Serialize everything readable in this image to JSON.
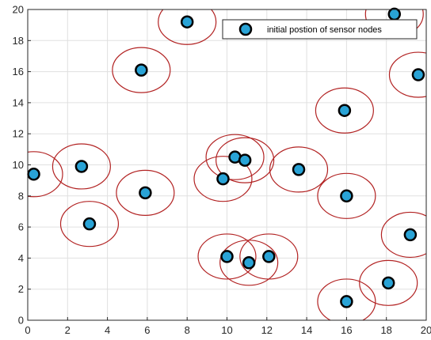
{
  "chart_data": {
    "type": "scatter",
    "xlim": [
      0,
      20
    ],
    "ylim": [
      0,
      20
    ],
    "xticks": [
      "0",
      "2",
      "4",
      "6",
      "8",
      "10",
      "12",
      "14",
      "16",
      "18",
      "20"
    ],
    "yticks": [
      "0",
      "2",
      "4",
      "6",
      "8",
      "10",
      "12",
      "14",
      "16",
      "18",
      "20"
    ],
    "grid": true,
    "legend_position": "top-right",
    "series": [
      {
        "name": "initial postion of sensor nodes",
        "marker_face_color": "#29a3d6",
        "marker_edge_color": "#000000",
        "points": [
          {
            "x": 0.3,
            "y": 9.4
          },
          {
            "x": 2.7,
            "y": 9.9
          },
          {
            "x": 3.1,
            "y": 6.2
          },
          {
            "x": 5.7,
            "y": 16.1
          },
          {
            "x": 5.9,
            "y": 8.2
          },
          {
            "x": 8.0,
            "y": 19.2
          },
          {
            "x": 9.8,
            "y": 9.1
          },
          {
            "x": 10.0,
            "y": 4.1
          },
          {
            "x": 10.4,
            "y": 10.5
          },
          {
            "x": 10.9,
            "y": 10.3
          },
          {
            "x": 11.1,
            "y": 3.7
          },
          {
            "x": 12.1,
            "y": 4.1
          },
          {
            "x": 13.6,
            "y": 9.7
          },
          {
            "x": 15.9,
            "y": 13.5
          },
          {
            "x": 16.0,
            "y": 8.0
          },
          {
            "x": 16.0,
            "y": 1.2
          },
          {
            "x": 18.1,
            "y": 2.4
          },
          {
            "x": 18.4,
            "y": 19.7
          },
          {
            "x": 19.2,
            "y": 5.5
          },
          {
            "x": 19.6,
            "y": 15.8
          }
        ]
      }
    ],
    "sensing_circle": {
      "radius": 1.45,
      "color": "#b22222"
    }
  }
}
